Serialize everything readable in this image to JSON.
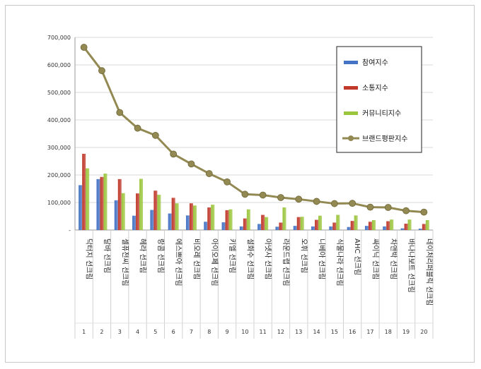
{
  "chart_data": {
    "type": "bar",
    "title": "",
    "xlabel": "",
    "ylabel": "",
    "ylim": [
      0,
      700000
    ],
    "yticks": [
      "-",
      "100,000",
      "200,000",
      "300,000",
      "400,000",
      "500,000",
      "600,000",
      "700,000"
    ],
    "grid": true,
    "legend_position": "top-right",
    "categories": [
      "닥터지 선크림",
      "달바 선크림",
      "셀퓨전씨 선크림",
      "헤라 선크림",
      "랑콤 선크림",
      "에스쁘아 선크림",
      "비오레 선크림",
      "아이오페 선크림",
      "키엘 선크림",
      "설화수 선크림",
      "아넷사 선크림",
      "라운드랩 선크림",
      "오휘 선크림",
      "니베아 선크림",
      "식물나라 선크림",
      "AHC 선크림",
      "싸이닉 선크림",
      "차앤박 선크림",
      "바나나보트 선크림",
      "네이처리퍼블릭 선크림"
    ],
    "ranks": [
      "1",
      "2",
      "3",
      "4",
      "5",
      "6",
      "7",
      "8",
      "9",
      "10",
      "11",
      "12",
      "13",
      "14",
      "15",
      "16",
      "17",
      "18",
      "19",
      "20"
    ],
    "series": [
      {
        "name": "참여지수",
        "type": "bar",
        "color": "#4472c4",
        "values": [
          163000,
          185000,
          108000,
          52000,
          73000,
          60000,
          53000,
          30000,
          28000,
          13000,
          22000,
          12000,
          15000,
          13000,
          13000,
          11000,
          15000,
          13000,
          6000,
          5000
        ]
      },
      {
        "name": "소통지수",
        "type": "bar",
        "color": "#c0392b",
        "values": [
          277000,
          193000,
          185000,
          133000,
          143000,
          117000,
          97000,
          82000,
          72000,
          42000,
          55000,
          27000,
          47000,
          37000,
          27000,
          33000,
          30000,
          32000,
          23000,
          22000
        ]
      },
      {
        "name": "커뮤니티지수",
        "type": "bar",
        "color": "#9bc53d",
        "values": [
          224000,
          205000,
          134000,
          186000,
          128000,
          97000,
          89000,
          92000,
          75000,
          75000,
          47000,
          82000,
          48000,
          52000,
          55000,
          53000,
          36000,
          38000,
          38000,
          36000
        ]
      },
      {
        "name": "브랜드평판지수",
        "type": "line",
        "color": "#938953",
        "values": [
          664000,
          579000,
          427000,
          370000,
          344000,
          276000,
          240000,
          205000,
          175000,
          130000,
          127000,
          118000,
          112000,
          104000,
          96000,
          97000,
          83000,
          82000,
          70000,
          65000
        ]
      }
    ]
  }
}
